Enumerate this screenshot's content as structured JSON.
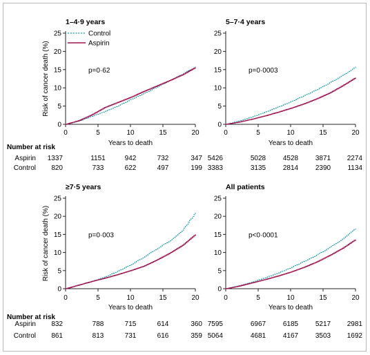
{
  "colors": {
    "control": "#1e9ba6",
    "aspirin": "#a0124f",
    "axis": "#222222"
  },
  "legend": {
    "control": "Control",
    "aspirin": "Aspirin"
  },
  "risk_header": "Number at risk",
  "risk_labels": {
    "aspirin": "Aspirin",
    "control": "Control"
  },
  "chart_data": [
    {
      "type": "line",
      "title": "1–4·9 years",
      "xlabel": "Years to death",
      "ylabel": "Risk of cancer death (%)",
      "pvalue": "p=0·62",
      "xlim": [
        0,
        20
      ],
      "ylim": [
        0,
        25
      ],
      "xticks": [
        0,
        5,
        10,
        15,
        20
      ],
      "yticks": [
        0,
        5,
        10,
        15,
        20,
        25
      ],
      "series": [
        {
          "name": "Control",
          "style": "dashed",
          "points": [
            [
              0,
              0
            ],
            [
              2,
              0.9
            ],
            [
              4,
              2.2
            ],
            [
              6,
              3.5
            ],
            [
              8,
              5.0
            ],
            [
              10,
              6.8
            ],
            [
              12,
              8.4
            ],
            [
              14,
              10.2
            ],
            [
              16,
              12.0
            ],
            [
              18,
              13.8
            ],
            [
              20,
              15.8
            ]
          ]
        },
        {
          "name": "Aspirin",
          "style": "solid",
          "points": [
            [
              0,
              0
            ],
            [
              2,
              1.0
            ],
            [
              4,
              2.6
            ],
            [
              6,
              4.6
            ],
            [
              8,
              6.0
            ],
            [
              10,
              7.4
            ],
            [
              12,
              9.0
            ],
            [
              14,
              10.5
            ],
            [
              16,
              12.0
            ],
            [
              18,
              13.6
            ],
            [
              20,
              15.6
            ]
          ]
        }
      ],
      "at_risk": {
        "x": [
          0,
          5,
          10,
          15,
          20
        ],
        "aspirin": [
          "1337",
          "1151",
          "942",
          "732",
          "347"
        ],
        "control": [
          "820",
          "733",
          "622",
          "497",
          "199"
        ]
      }
    },
    {
      "type": "line",
      "title": "5–7·4 years",
      "xlabel": "Years to death",
      "ylabel": "",
      "pvalue": "p=0·0003",
      "xlim": [
        0,
        20
      ],
      "ylim": [
        0,
        25
      ],
      "xticks": [
        0,
        5,
        10,
        15,
        20
      ],
      "yticks": [
        0,
        5,
        10,
        15,
        20,
        25
      ],
      "series": [
        {
          "name": "Control",
          "style": "dashed",
          "points": [
            [
              0,
              0
            ],
            [
              2,
              0.9
            ],
            [
              4,
              2.0
            ],
            [
              6,
              3.3
            ],
            [
              8,
              4.7
            ],
            [
              10,
              6.2
            ],
            [
              12,
              7.8
            ],
            [
              14,
              9.5
            ],
            [
              16,
              11.4
            ],
            [
              18,
              13.4
            ],
            [
              20,
              15.8
            ]
          ]
        },
        {
          "name": "Aspirin",
          "style": "solid",
          "points": [
            [
              0,
              0
            ],
            [
              2,
              0.6
            ],
            [
              4,
              1.4
            ],
            [
              6,
              2.3
            ],
            [
              8,
              3.3
            ],
            [
              10,
              4.4
            ],
            [
              12,
              5.6
            ],
            [
              14,
              7.0
            ],
            [
              16,
              8.6
            ],
            [
              18,
              10.6
            ],
            [
              20,
              12.8
            ]
          ]
        }
      ],
      "at_risk": {
        "x": [
          0,
          5,
          10,
          15,
          20
        ],
        "aspirin": [
          "5426",
          "5028",
          "4528",
          "3871",
          "2274"
        ],
        "control": [
          "3383",
          "3135",
          "2814",
          "2390",
          "1134"
        ]
      }
    },
    {
      "type": "line",
      "title": "≥7·5 years",
      "xlabel": "Years to death",
      "ylabel": "Risk of cancer death (%)",
      "pvalue": "p=0·003",
      "xlim": [
        0,
        20
      ],
      "ylim": [
        0,
        25
      ],
      "xticks": [
        0,
        5,
        10,
        15,
        20
      ],
      "yticks": [
        0,
        5,
        10,
        15,
        20,
        25
      ],
      "series": [
        {
          "name": "Control",
          "style": "dashed",
          "points": [
            [
              0,
              0
            ],
            [
              2,
              1.0
            ],
            [
              4,
              2.0
            ],
            [
              6,
              3.2
            ],
            [
              8,
              4.8
            ],
            [
              10,
              6.6
            ],
            [
              12,
              8.7
            ],
            [
              14,
              11.0
            ],
            [
              16,
              13.2
            ],
            [
              18,
              16.2
            ],
            [
              20,
              21.0
            ]
          ]
        },
        {
          "name": "Aspirin",
          "style": "solid",
          "points": [
            [
              0,
              0
            ],
            [
              2,
              1.0
            ],
            [
              4,
              2.0
            ],
            [
              6,
              2.9
            ],
            [
              8,
              3.9
            ],
            [
              10,
              5.0
            ],
            [
              12,
              6.2
            ],
            [
              14,
              7.9
            ],
            [
              16,
              9.8
            ],
            [
              18,
              12.0
            ],
            [
              20,
              15.0
            ]
          ]
        }
      ],
      "at_risk": {
        "x": [
          0,
          5,
          10,
          15,
          20
        ],
        "aspirin": [
          "832",
          "788",
          "715",
          "614",
          "360"
        ],
        "control": [
          "861",
          "813",
          "731",
          "616",
          "359"
        ]
      }
    },
    {
      "type": "line",
      "title": "All patients",
      "xlabel": "Years to death",
      "ylabel": "",
      "pvalue": "p<0·0001",
      "xlim": [
        0,
        20
      ],
      "ylim": [
        0,
        25
      ],
      "xticks": [
        0,
        5,
        10,
        15,
        20
      ],
      "yticks": [
        0,
        5,
        10,
        15,
        20,
        25
      ],
      "series": [
        {
          "name": "Control",
          "style": "dashed",
          "points": [
            [
              0,
              0
            ],
            [
              2,
              0.8
            ],
            [
              4,
              1.8
            ],
            [
              6,
              3.0
            ],
            [
              8,
              4.3
            ],
            [
              10,
              5.8
            ],
            [
              12,
              7.5
            ],
            [
              14,
              9.3
            ],
            [
              16,
              11.4
            ],
            [
              18,
              13.8
            ],
            [
              20,
              16.6
            ]
          ]
        },
        {
          "name": "Aspirin",
          "style": "solid",
          "points": [
            [
              0,
              0
            ],
            [
              2,
              0.7
            ],
            [
              4,
              1.6
            ],
            [
              6,
              2.5
            ],
            [
              8,
              3.5
            ],
            [
              10,
              4.6
            ],
            [
              12,
              5.9
            ],
            [
              14,
              7.4
            ],
            [
              16,
              9.2
            ],
            [
              18,
              11.2
            ],
            [
              20,
              13.6
            ]
          ]
        }
      ],
      "at_risk": {
        "x": [
          0,
          5,
          10,
          15,
          20
        ],
        "aspirin": [
          "7595",
          "6967",
          "6185",
          "5217",
          "2981"
        ],
        "control": [
          "5064",
          "4681",
          "4167",
          "3503",
          "1692"
        ]
      }
    }
  ]
}
